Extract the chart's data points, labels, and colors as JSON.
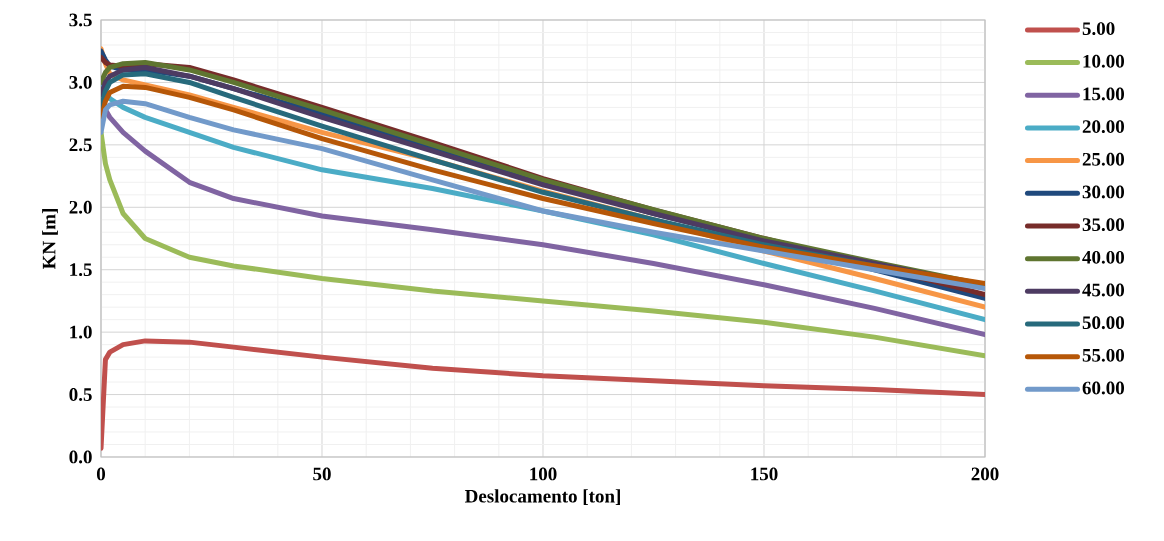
{
  "chart_data": {
    "type": "line",
    "xlabel": "Deslocamento [ton]",
    "ylabel": "KN [m]",
    "x": [
      0,
      1,
      2,
      5,
      10,
      20,
      30,
      50,
      75,
      100,
      125,
      150,
      175,
      200
    ],
    "xlim": [
      0,
      200
    ],
    "xticks": [
      0,
      50,
      100,
      150,
      200
    ],
    "ylim": [
      0,
      3.5
    ],
    "yticks": [
      {
        "value": 0,
        "label": "0.0"
      },
      {
        "value": 0.5,
        "label": "0.5"
      },
      {
        "value": 1,
        "label": "1.0"
      },
      {
        "value": 1.5,
        "label": "1.5"
      },
      {
        "value": 2,
        "label": "2.0"
      },
      {
        "value": 2.5,
        "label": "2.5"
      },
      {
        "value": 3,
        "label": "3.0"
      },
      {
        "value": 3.5,
        "label": "3.5"
      }
    ],
    "grid": true,
    "legend": "right",
    "marker": "none",
    "line_style": "solid",
    "series": [
      {
        "name": "5.00",
        "color": "#c0504d",
        "values": [
          0.07,
          0.78,
          0.84,
          0.9,
          0.93,
          0.92,
          0.88,
          0.8,
          0.71,
          0.65,
          0.61,
          0.57,
          0.54,
          0.5
        ]
      },
      {
        "name": "10.00",
        "color": "#9bbb59",
        "values": [
          2.6,
          2.35,
          2.22,
          1.95,
          1.75,
          1.6,
          1.53,
          1.43,
          1.33,
          1.25,
          1.17,
          1.08,
          0.96,
          0.81
        ]
      },
      {
        "name": "15.00",
        "color": "#8064a2",
        "values": [
          2.85,
          2.78,
          2.72,
          2.6,
          2.45,
          2.2,
          2.07,
          1.93,
          1.82,
          1.7,
          1.55,
          1.38,
          1.19,
          0.98
        ]
      },
      {
        "name": "20.00",
        "color": "#4bacc6",
        "values": [
          3.0,
          2.93,
          2.87,
          2.8,
          2.72,
          2.6,
          2.48,
          2.3,
          2.15,
          1.97,
          1.78,
          1.55,
          1.33,
          1.1
        ]
      },
      {
        "name": "25.00",
        "color": "#f79646",
        "values": [
          3.27,
          3.15,
          3.07,
          3.02,
          2.98,
          2.9,
          2.8,
          2.6,
          2.38,
          2.13,
          1.9,
          1.65,
          1.43,
          1.2
        ]
      },
      {
        "name": "30.00",
        "color": "#1f497d",
        "values": [
          3.25,
          3.18,
          3.13,
          3.1,
          3.1,
          3.05,
          2.95,
          2.75,
          2.48,
          2.2,
          1.95,
          1.73,
          1.5,
          1.27
        ]
      },
      {
        "name": "35.00",
        "color": "#772c2a",
        "values": [
          3.2,
          3.16,
          3.14,
          3.13,
          3.15,
          3.12,
          3.02,
          2.8,
          2.52,
          2.23,
          1.98,
          1.75,
          1.53,
          1.3
        ]
      },
      {
        "name": "40.00",
        "color": "#5f7530",
        "values": [
          3.0,
          3.08,
          3.12,
          3.15,
          3.16,
          3.1,
          3.0,
          2.78,
          2.5,
          2.22,
          1.98,
          1.75,
          1.56,
          1.38
        ]
      },
      {
        "name": "45.00",
        "color": "#4d3b62",
        "values": [
          2.9,
          3.0,
          3.05,
          3.1,
          3.12,
          3.05,
          2.95,
          2.72,
          2.45,
          2.18,
          1.95,
          1.73,
          1.55,
          1.37
        ]
      },
      {
        "name": "50.00",
        "color": "#276a7c",
        "values": [
          2.8,
          2.93,
          3.0,
          3.06,
          3.07,
          3.0,
          2.88,
          2.65,
          2.38,
          2.12,
          1.9,
          1.7,
          1.53,
          1.37
        ]
      },
      {
        "name": "55.00",
        "color": "#b65708",
        "values": [
          2.7,
          2.85,
          2.92,
          2.97,
          2.96,
          2.88,
          2.78,
          2.55,
          2.3,
          2.07,
          1.87,
          1.68,
          1.53,
          1.39
        ]
      },
      {
        "name": "60.00",
        "color": "#729aca",
        "values": [
          2.6,
          2.78,
          2.82,
          2.85,
          2.83,
          2.72,
          2.62,
          2.47,
          2.22,
          1.97,
          1.8,
          1.65,
          1.5,
          1.35
        ]
      }
    ]
  }
}
